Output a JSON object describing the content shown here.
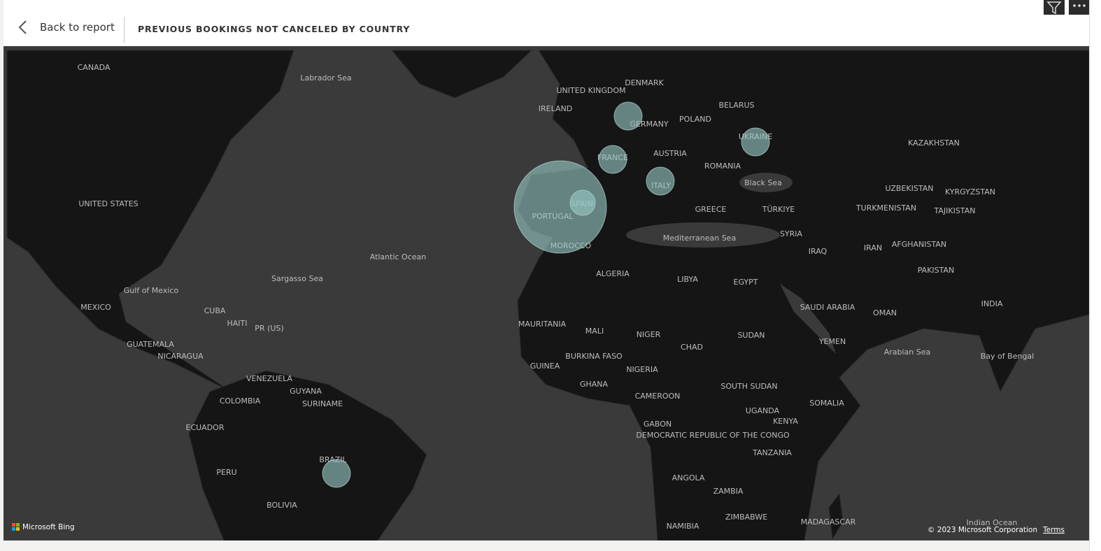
{
  "header": {
    "back": "Back to report",
    "title": "PREVIOUS BOOKINGS NOT CANCELED BY COUNTRY"
  },
  "map": {
    "labels": [
      "CANADA",
      "UNITED STATES",
      "Labrador Sea",
      "UNITED KINGDOM",
      "IRELAND",
      "DENMARK",
      "GERMANY",
      "POLAND",
      "BELARUS",
      "UKRAINE",
      "FRANCE",
      "AUSTRIA",
      "ROMANIA",
      "Black Sea",
      "KAZAKHSTAN",
      "ITALY",
      "SPAIN",
      "PORTUGAL",
      "GREECE",
      "TÜRKIYE",
      "UZBEKISTAN",
      "KYRGYZSTAN",
      "TURKMENISTAN",
      "TAJIKISTAN",
      "MOROCCO",
      "Mediterranean Sea",
      "SYRIA",
      "IRAQ",
      "IRAN",
      "AFGHANISTAN",
      "PAKISTAN",
      "Atlantic Ocean",
      "Sargasso Sea",
      "ALGERIA",
      "LIBYA",
      "EGYPT",
      "Gulf of Mexico",
      "MEXICO",
      "SAUDI ARABIA",
      "OMAN",
      "INDIA",
      "CUBA",
      "HAITI",
      "PR (US)",
      "MAURITANIA",
      "MALI",
      "NIGER",
      "SUDAN",
      "YEMEN",
      "CHAD",
      "GUATEMALA",
      "NICARAGUA",
      "Arabian Sea",
      "Bay of Bengal",
      "BURKINA FASO",
      "GUINEA",
      "NIGERIA",
      "GHANA",
      "VENEZUELA",
      "GUYANA",
      "SOUTH SUDAN",
      "CAMEROON",
      "COLOMBIA",
      "SURINAME",
      "SOMALIA",
      "UGANDA",
      "KENYA",
      "GABON",
      "ECUADOR",
      "DEMOCRATIC REPUBLIC OF THE CONGO",
      "TANZANIA",
      "BRAZIL",
      "PERU",
      "ANGOLA",
      "ZAMBIA",
      "BOLIVIA",
      "ZIMBABWE",
      "MADAGASCAR",
      "NAMIBIA",
      "Indian Ocean"
    ]
  },
  "footer": {
    "provider": "Microsoft Bing",
    "copyright": "© 2023 Microsoft Corporation",
    "terms": "Terms"
  }
}
